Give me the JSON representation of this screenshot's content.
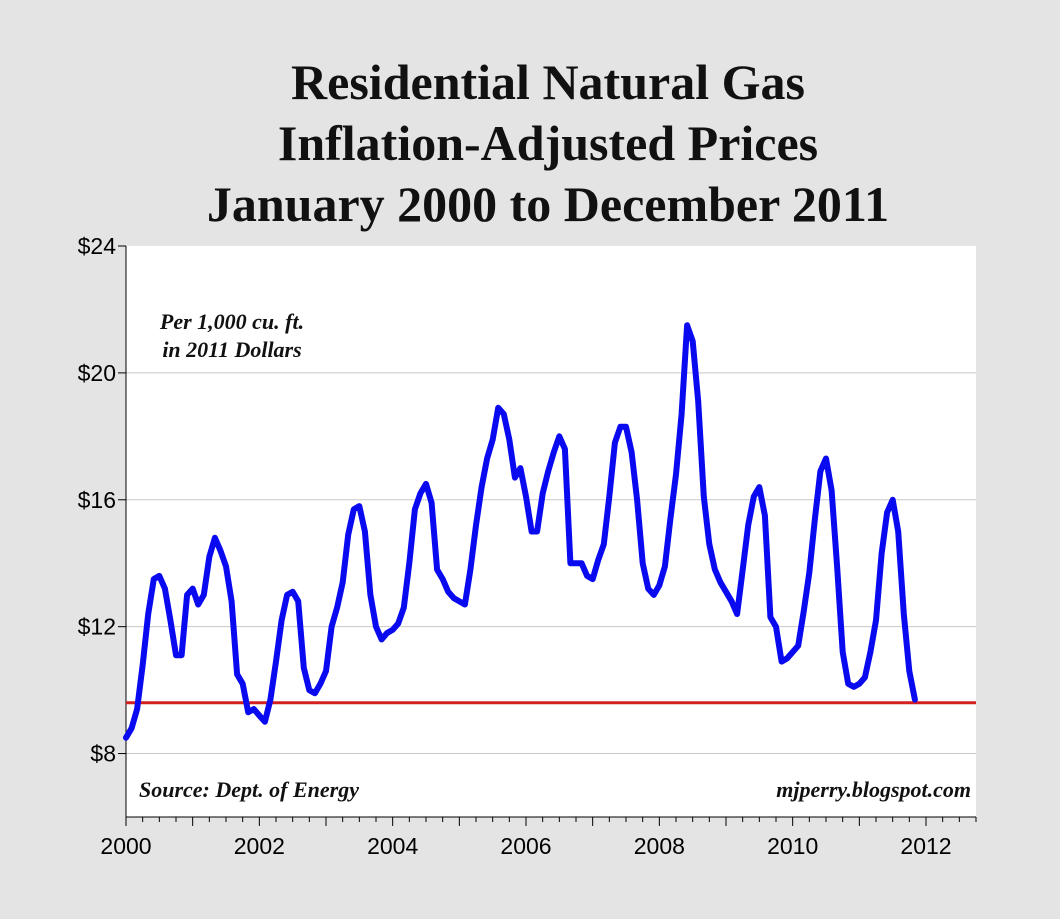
{
  "chart_data": {
    "type": "line",
    "title": [
      "Residential Natural Gas",
      "Inflation-Adjusted Prices",
      "January 2000 to December 2011"
    ],
    "unit_note": [
      "Per 1,000 cu. ft.",
      "in 2011 Dollars"
    ],
    "source": "Source: Dept. of Energy",
    "credit": "mjperry.blogspot.com",
    "xlabel": "",
    "ylabel": "",
    "xlim": [
      2000,
      2012.75
    ],
    "ylim": [
      6,
      24
    ],
    "x_ticks": [
      "2000",
      "2002",
      "2004",
      "2006",
      "2008",
      "2010",
      "2012"
    ],
    "y_ticks": [
      {
        "value": 24,
        "label": "$24"
      },
      {
        "value": 20,
        "label": "$20"
      },
      {
        "value": 16,
        "label": "$16"
      },
      {
        "value": 12,
        "label": "$12"
      },
      {
        "value": 8,
        "label": "$8"
      }
    ],
    "reference_line": {
      "value": 9.6,
      "color": "#d42020"
    },
    "series": [
      {
        "name": "Residential natural gas price (2011 $ per 1,000 cu. ft.)",
        "color": "#0a0af0",
        "start": 2000,
        "step_months": 1,
        "values": [
          8.5,
          8.8,
          9.4,
          10.8,
          12.4,
          13.5,
          13.6,
          13.2,
          12.2,
          11.1,
          11.1,
          13.0,
          13.2,
          12.7,
          13.0,
          14.2,
          14.8,
          14.4,
          13.9,
          12.8,
          10.5,
          10.2,
          9.3,
          9.4,
          9.2,
          9.0,
          9.7,
          10.9,
          12.2,
          13.0,
          13.1,
          12.8,
          10.7,
          10.0,
          9.9,
          10.2,
          10.6,
          12.0,
          12.6,
          13.4,
          14.9,
          15.7,
          15.8,
          15.0,
          13.0,
          12.0,
          11.6,
          11.8,
          11.9,
          12.1,
          12.6,
          14.0,
          15.7,
          16.2,
          16.5,
          15.9,
          13.8,
          13.5,
          13.1,
          12.9,
          12.8,
          12.7,
          13.8,
          15.2,
          16.4,
          17.3,
          17.9,
          18.9,
          18.7,
          17.9,
          16.7,
          17.0,
          16.1,
          15.0,
          15.0,
          16.2,
          16.9,
          17.5,
          18.0,
          17.6,
          14.0,
          14.0,
          14.0,
          13.6,
          13.5,
          14.1,
          14.6,
          16.1,
          17.8,
          18.3,
          18.3,
          17.5,
          16.0,
          14.0,
          13.2,
          13.0,
          13.3,
          13.9,
          15.4,
          16.8,
          18.7,
          21.5,
          21.0,
          19.1,
          16.1,
          14.6,
          13.8,
          13.4,
          13.1,
          12.8,
          12.4,
          13.8,
          15.2,
          16.1,
          16.4,
          15.5,
          12.3,
          12.0,
          10.9,
          11.0,
          11.2,
          11.4,
          12.5,
          13.7,
          15.4,
          16.9,
          17.3,
          16.3,
          13.9,
          11.2,
          10.2,
          10.1,
          10.2,
          10.4,
          11.2,
          12.2,
          14.3,
          15.6,
          16.0,
          15.0,
          12.4,
          10.6,
          9.7
        ]
      }
    ]
  }
}
